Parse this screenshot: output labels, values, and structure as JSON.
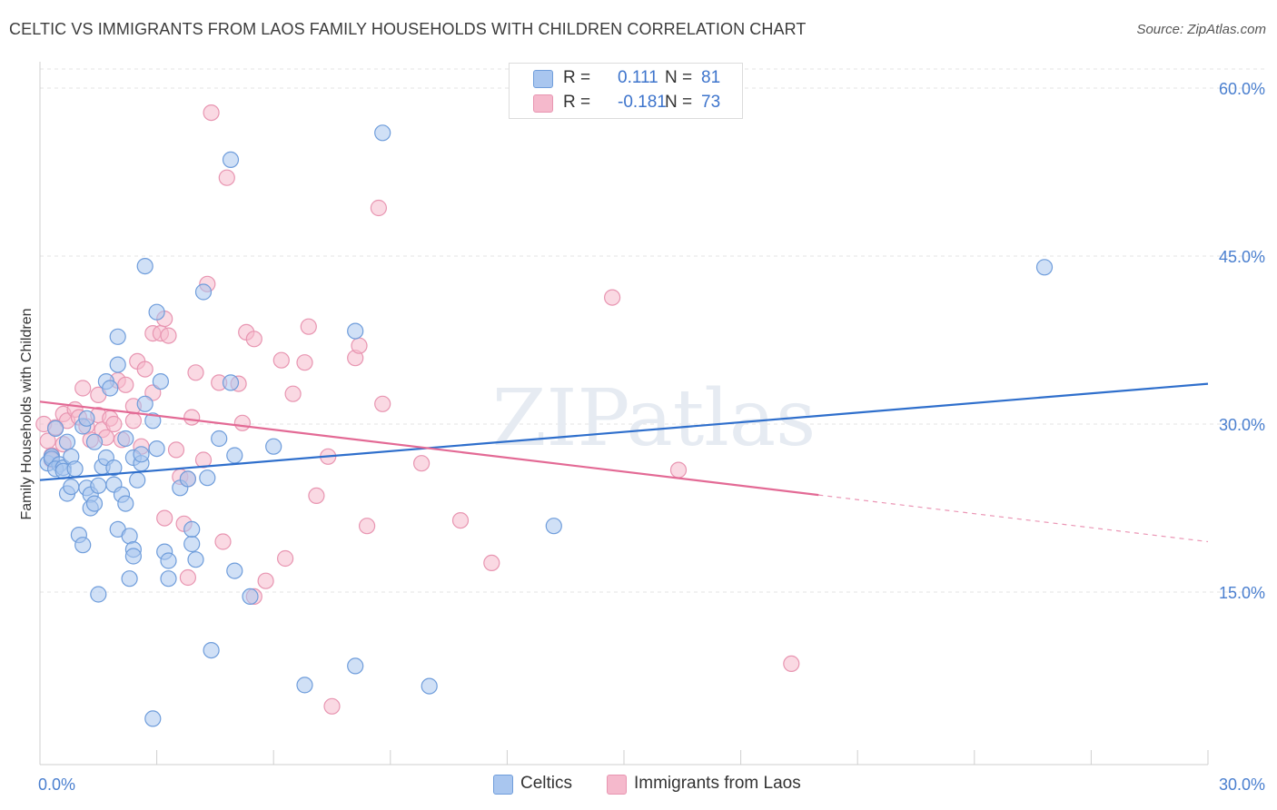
{
  "title": "CELTIC VS IMMIGRANTS FROM LAOS FAMILY HOUSEHOLDS WITH CHILDREN CORRELATION CHART",
  "source": "Source: ZipAtlas.com",
  "watermark": "ZIPatlas",
  "colors": {
    "celtic_fill": "#a9c6ef",
    "celtic_stroke": "#6f9ddb",
    "celtic_line": "#2f6fcc",
    "laos_fill": "#f5b9cc",
    "laos_stroke": "#e895b1",
    "laos_line": "#e36a95",
    "tick_text": "#4a7fcf",
    "grid": "#e3e3e3"
  },
  "legend": {
    "rows": [
      {
        "r_label": "R =",
        "r_value": "0.111",
        "n_label": "N =",
        "n_value": "81"
      },
      {
        "r_label": "R =",
        "r_value": "-0.181",
        "n_label": "N =",
        "n_value": "73"
      }
    ]
  },
  "chart_data": {
    "type": "scatter",
    "xlabel": "",
    "ylabel": "Family Households with Children",
    "xlim": [
      0,
      30
    ],
    "ylim": [
      0,
      61
    ],
    "x_ticks": [
      {
        "value": 0,
        "label": "0.0%"
      },
      {
        "value": 30,
        "label": "30.0%"
      }
    ],
    "y_ticks": [
      {
        "value": 15,
        "label": "15.0%"
      },
      {
        "value": 30,
        "label": "30.0%"
      },
      {
        "value": 45,
        "label": "45.0%"
      },
      {
        "value": 60,
        "label": "60.0%"
      }
    ],
    "grid": true,
    "legend_position": "bottom",
    "series": [
      {
        "name": "Celtics",
        "trend": {
          "x": [
            0,
            30
          ],
          "y": [
            25.0,
            33.6
          ],
          "dashed_from": null
        },
        "points": [
          [
            0.2,
            26.5
          ],
          [
            0.3,
            27.1
          ],
          [
            0.3,
            26.9
          ],
          [
            0.4,
            29.6
          ],
          [
            0.5,
            26.4
          ],
          [
            0.4,
            26.0
          ],
          [
            0.6,
            26.1
          ],
          [
            0.6,
            25.8
          ],
          [
            0.7,
            23.8
          ],
          [
            0.7,
            28.4
          ],
          [
            0.8,
            24.4
          ],
          [
            0.8,
            27.1
          ],
          [
            0.9,
            26.0
          ],
          [
            1.0,
            20.1
          ],
          [
            1.1,
            19.2
          ],
          [
            1.1,
            29.8
          ],
          [
            1.2,
            30.5
          ],
          [
            1.2,
            24.3
          ],
          [
            1.3,
            23.7
          ],
          [
            1.3,
            22.5
          ],
          [
            1.4,
            22.9
          ],
          [
            1.4,
            28.4
          ],
          [
            1.5,
            14.8
          ],
          [
            1.5,
            24.5
          ],
          [
            1.6,
            26.2
          ],
          [
            1.7,
            33.8
          ],
          [
            1.7,
            27.0
          ],
          [
            1.8,
            33.2
          ],
          [
            1.9,
            26.1
          ],
          [
            1.9,
            24.6
          ],
          [
            2.0,
            20.6
          ],
          [
            2.0,
            37.8
          ],
          [
            2.0,
            35.3
          ],
          [
            2.1,
            23.7
          ],
          [
            2.2,
            22.9
          ],
          [
            2.2,
            28.7
          ],
          [
            2.3,
            16.2
          ],
          [
            2.3,
            20.0
          ],
          [
            2.4,
            18.8
          ],
          [
            2.4,
            27.0
          ],
          [
            2.4,
            18.2
          ],
          [
            2.5,
            25.0
          ],
          [
            2.6,
            26.5
          ],
          [
            2.6,
            27.3
          ],
          [
            2.7,
            31.8
          ],
          [
            2.7,
            44.1
          ],
          [
            2.9,
            3.7
          ],
          [
            2.9,
            30.3
          ],
          [
            3.0,
            40.0
          ],
          [
            3.0,
            27.8
          ],
          [
            3.1,
            33.8
          ],
          [
            3.2,
            18.6
          ],
          [
            3.3,
            17.8
          ],
          [
            3.3,
            16.2
          ],
          [
            3.6,
            24.3
          ],
          [
            3.8,
            25.1
          ],
          [
            3.9,
            19.3
          ],
          [
            3.9,
            20.6
          ],
          [
            4.0,
            17.9
          ],
          [
            4.2,
            41.8
          ],
          [
            4.3,
            25.2
          ],
          [
            4.4,
            9.8
          ],
          [
            4.6,
            28.7
          ],
          [
            4.9,
            33.7
          ],
          [
            4.9,
            53.6
          ],
          [
            5.0,
            16.9
          ],
          [
            5.0,
            27.2
          ],
          [
            5.4,
            14.6
          ],
          [
            6.0,
            28.0
          ],
          [
            6.8,
            6.7
          ],
          [
            8.1,
            8.4
          ],
          [
            8.1,
            38.3
          ],
          [
            8.8,
            56.0
          ],
          [
            10.0,
            6.6
          ],
          [
            13.2,
            20.9
          ],
          [
            25.8,
            44.0
          ]
        ]
      },
      {
        "name": "Immigrants from Laos",
        "trend": {
          "x": [
            0,
            30
          ],
          "y": [
            32.0,
            19.5
          ],
          "dashed_from": 20.0
        },
        "points": [
          [
            0.1,
            30.0
          ],
          [
            0.2,
            28.5
          ],
          [
            0.3,
            27.2
          ],
          [
            0.3,
            26.8
          ],
          [
            0.4,
            29.7
          ],
          [
            0.6,
            28.2
          ],
          [
            0.6,
            30.9
          ],
          [
            0.7,
            30.3
          ],
          [
            0.9,
            31.3
          ],
          [
            1.0,
            30.6
          ],
          [
            1.1,
            33.2
          ],
          [
            1.2,
            29.8
          ],
          [
            1.3,
            28.6
          ],
          [
            1.5,
            30.8
          ],
          [
            1.5,
            32.6
          ],
          [
            1.6,
            29.5
          ],
          [
            1.7,
            28.8
          ],
          [
            1.8,
            30.5
          ],
          [
            1.9,
            30.0
          ],
          [
            2.0,
            33.9
          ],
          [
            2.1,
            28.6
          ],
          [
            2.2,
            33.5
          ],
          [
            2.4,
            30.3
          ],
          [
            2.4,
            31.6
          ],
          [
            2.5,
            35.6
          ],
          [
            2.6,
            28.0
          ],
          [
            2.7,
            34.9
          ],
          [
            2.9,
            38.1
          ],
          [
            2.9,
            32.8
          ],
          [
            3.1,
            38.1
          ],
          [
            3.2,
            39.4
          ],
          [
            3.3,
            37.9
          ],
          [
            3.2,
            21.6
          ],
          [
            3.5,
            27.7
          ],
          [
            3.6,
            25.3
          ],
          [
            3.7,
            21.1
          ],
          [
            3.8,
            25.1
          ],
          [
            3.8,
            16.3
          ],
          [
            3.9,
            30.6
          ],
          [
            4.0,
            34.6
          ],
          [
            4.2,
            26.8
          ],
          [
            4.3,
            42.5
          ],
          [
            4.4,
            57.8
          ],
          [
            4.6,
            33.7
          ],
          [
            4.7,
            19.5
          ],
          [
            4.8,
            52.0
          ],
          [
            5.1,
            33.6
          ],
          [
            5.2,
            30.1
          ],
          [
            5.3,
            38.2
          ],
          [
            5.5,
            37.6
          ],
          [
            5.5,
            14.6
          ],
          [
            5.8,
            16.0
          ],
          [
            6.2,
            35.7
          ],
          [
            6.3,
            18.0
          ],
          [
            6.5,
            32.7
          ],
          [
            6.8,
            35.5
          ],
          [
            6.9,
            38.7
          ],
          [
            7.1,
            23.6
          ],
          [
            7.4,
            27.1
          ],
          [
            7.5,
            4.8
          ],
          [
            8.1,
            35.9
          ],
          [
            8.2,
            37.0
          ],
          [
            8.4,
            20.9
          ],
          [
            8.7,
            49.3
          ],
          [
            8.8,
            31.8
          ],
          [
            9.8,
            26.5
          ],
          [
            10.8,
            21.4
          ],
          [
            11.6,
            17.6
          ],
          [
            14.7,
            41.3
          ],
          [
            16.4,
            25.9
          ],
          [
            19.3,
            8.6
          ]
        ]
      }
    ]
  }
}
